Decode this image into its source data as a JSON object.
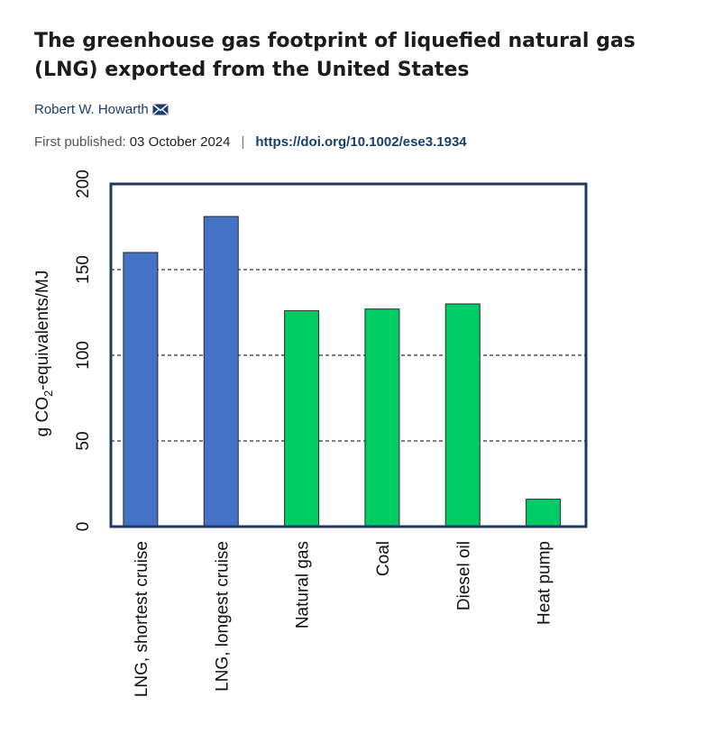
{
  "article": {
    "title": "The greenhouse gas footprint of liquefied natural gas (LNG) exported from the United States",
    "author": "Robert W. Howarth",
    "published_label": "First published:",
    "published_date": "03 October 2024",
    "separator": "|",
    "doi": "https://doi.org/10.1002/ese3.1934"
  },
  "icons": {
    "author_contact": "envelope-icon"
  },
  "chart_data": {
    "type": "bar",
    "categories": [
      "LNG, shortest cruise",
      "LNG, longest cruise",
      "Natural gas",
      "Coal",
      "Diesel oil",
      "Heat pump"
    ],
    "values": [
      160,
      181,
      126,
      127,
      130,
      16
    ],
    "bar_colors": [
      "#4472c4",
      "#4472c4",
      "#00cc66",
      "#00cc66",
      "#00cc66",
      "#00cc66"
    ],
    "ylabel_prefix": "g CO",
    "ylabel_sub": "2",
    "ylabel_suffix": "-equivalents/MJ",
    "ylim": [
      0,
      200
    ],
    "yticks": [
      "0",
      "50",
      "100",
      "150",
      "200"
    ],
    "gridlines": [
      50,
      100,
      150
    ],
    "grid": "dashed horizontal",
    "frame_color": "#1f3864"
  }
}
